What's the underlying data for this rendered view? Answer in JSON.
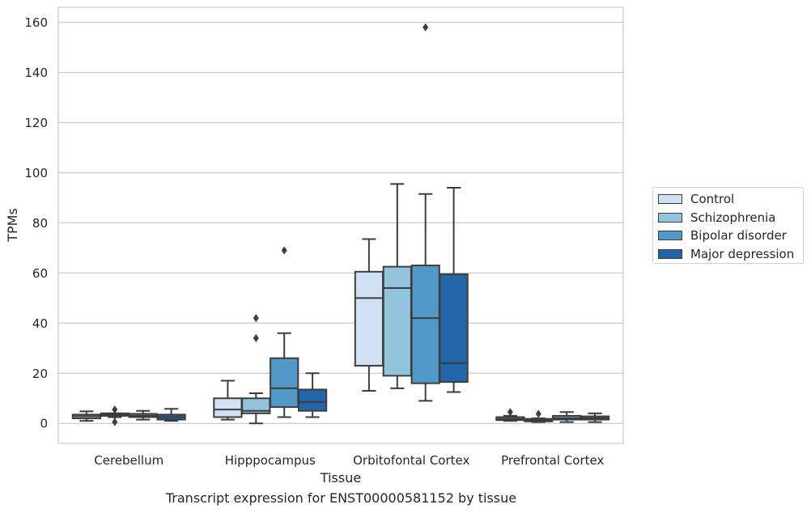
{
  "caption": "Transcript expression for ENST00000581152 by tissue",
  "chart_data": {
    "type": "box",
    "xlabel": "Tissue",
    "ylabel": "TPMs",
    "ylim": [
      -8,
      166
    ],
    "yticks": [
      0,
      20,
      40,
      60,
      80,
      100,
      120,
      140,
      160
    ],
    "grid": "horizontal",
    "legend_position": "outside-right",
    "categories": [
      "Cerebellum",
      "Hipppocampus",
      "Orbitofontal Cortex",
      "Prefrontal Cortex"
    ],
    "series": [
      {
        "name": "Control",
        "color": "#cfe1f2",
        "boxes": [
          {
            "whislo": 1.0,
            "q1": 2.0,
            "med": 2.8,
            "q3": 3.5,
            "whishi": 4.8,
            "fliers": []
          },
          {
            "whislo": 1.5,
            "q1": 2.5,
            "med": 5.5,
            "q3": 10.0,
            "whishi": 17.0,
            "fliers": []
          },
          {
            "whislo": 13.0,
            "q1": 23.0,
            "med": 50.0,
            "q3": 60.5,
            "whishi": 73.5,
            "fliers": []
          },
          {
            "whislo": 1.0,
            "q1": 1.3,
            "med": 1.8,
            "q3": 2.5,
            "whishi": 3.0,
            "fliers": [
              4.5
            ]
          }
        ]
      },
      {
        "name": "Schizophrenia",
        "color": "#93c4de",
        "boxes": [
          {
            "whislo": 2.5,
            "q1": 3.0,
            "med": 3.5,
            "q3": 4.0,
            "whishi": 4.0,
            "fliers": [
              5.5,
              0.5,
              3.0
            ]
          },
          {
            "whislo": 0.0,
            "q1": 4.0,
            "med": 5.0,
            "q3": 10.0,
            "whishi": 12.0,
            "fliers": [
              42.0,
              34.0
            ]
          },
          {
            "whislo": 14.0,
            "q1": 19.0,
            "med": 54.0,
            "q3": 62.5,
            "whishi": 95.5,
            "fliers": []
          },
          {
            "whislo": 0.5,
            "q1": 0.8,
            "med": 1.2,
            "q3": 1.8,
            "whishi": 2.0,
            "fliers": [
              3.8
            ]
          }
        ]
      },
      {
        "name": "Bipolar disorder",
        "color": "#5299c7",
        "boxes": [
          {
            "whislo": 1.5,
            "q1": 2.5,
            "med": 3.0,
            "q3": 3.8,
            "whishi": 5.0,
            "fliers": []
          },
          {
            "whislo": 2.5,
            "q1": 6.5,
            "med": 14.0,
            "q3": 26.0,
            "whishi": 36.0,
            "fliers": [
              69.0
            ]
          },
          {
            "whislo": 9.0,
            "q1": 16.0,
            "med": 42.0,
            "q3": 63.0,
            "whishi": 91.5,
            "fliers": [
              158.0
            ]
          },
          {
            "whislo": 0.5,
            "q1": 1.5,
            "med": 2.0,
            "q3": 3.0,
            "whishi": 4.5,
            "fliers": []
          }
        ]
      },
      {
        "name": "Major depression",
        "color": "#2266a9",
        "boxes": [
          {
            "whislo": 1.0,
            "q1": 1.5,
            "med": 2.5,
            "q3": 3.5,
            "whishi": 5.8,
            "fliers": []
          },
          {
            "whislo": 2.5,
            "q1": 5.0,
            "med": 8.5,
            "q3": 13.5,
            "whishi": 20.0,
            "fliers": []
          },
          {
            "whislo": 12.5,
            "q1": 16.5,
            "med": 24.0,
            "q3": 59.5,
            "whishi": 94.0,
            "fliers": []
          },
          {
            "whislo": 0.5,
            "q1": 1.5,
            "med": 2.0,
            "q3": 2.8,
            "whishi": 4.0,
            "fliers": []
          }
        ]
      }
    ]
  }
}
